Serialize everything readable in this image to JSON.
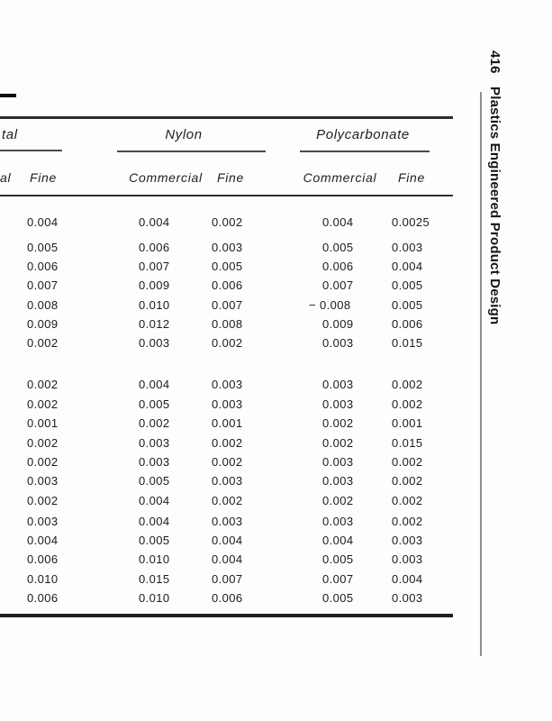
{
  "sidebar": {
    "page_number": "416",
    "book_title": "Plastics Engineered Product Design"
  },
  "table": {
    "group_headers": [
      {
        "label": "tal"
      },
      {
        "label": "Nylon"
      },
      {
        "label": "Polycarbonate"
      }
    ],
    "column_headers": [
      {
        "label": "al"
      },
      {
        "label": "Fine"
      },
      {
        "label": "Commercial"
      },
      {
        "label": "Fine"
      },
      {
        "label": "Commercial"
      },
      {
        "label": "Fine"
      }
    ],
    "blocks": [
      {
        "rows": [
          [
            "0.004",
            "0.004",
            "0.002",
            "0.004",
            "0.0025"
          ]
        ]
      },
      {
        "rows": [
          [
            "0.005",
            "0.006",
            "0.003",
            "0.005",
            "0.003"
          ],
          [
            "0.006",
            "0.007",
            "0.005",
            "0.006",
            "0.004"
          ],
          [
            "0.007",
            "0.009",
            "0.006",
            "0.007",
            "0.005"
          ],
          [
            "0.008",
            "0.010",
            "0.007",
            "− 0.008",
            "0.005"
          ],
          [
            "0.009",
            "0.012",
            "0.008",
            "0.009",
            "0.006"
          ],
          [
            "0.002",
            "0.003",
            "0.002",
            "0.003",
            "0.015"
          ]
        ]
      },
      {
        "rows": [
          [
            "0.002",
            "0.004",
            "0.003",
            "0.003",
            "0.002"
          ],
          [
            "0.002",
            "0.005",
            "0.003",
            "0.003",
            "0.002"
          ],
          [
            "0.001",
            "0.002",
            "0.001",
            "0.002",
            "0.001"
          ],
          [
            "0.002",
            "0.003",
            "0.002",
            "0.002",
            "0.015"
          ],
          [
            "0.002",
            "0.003",
            "0.002",
            "0.003",
            "0.002"
          ],
          [
            "0.003",
            "0.005",
            "0.003",
            "0.003",
            "0.002"
          ],
          [
            "0.002",
            "0.004",
            "0.002",
            "0.002",
            "0.002"
          ],
          [
            "0.003",
            "0.004",
            "0.003",
            "0.003",
            "0.002"
          ],
          [
            "0.004",
            "0.005",
            "0.004",
            "0.004",
            "0.003"
          ],
          [
            "0.006",
            "0.010",
            "0.004",
            "0.005",
            "0.003"
          ],
          [
            "0.010",
            "0.015",
            "0.007",
            "0.007",
            "0.004"
          ],
          [
            "0.006",
            "0.010",
            "0.006",
            "0.005",
            "0.003"
          ]
        ]
      }
    ]
  }
}
